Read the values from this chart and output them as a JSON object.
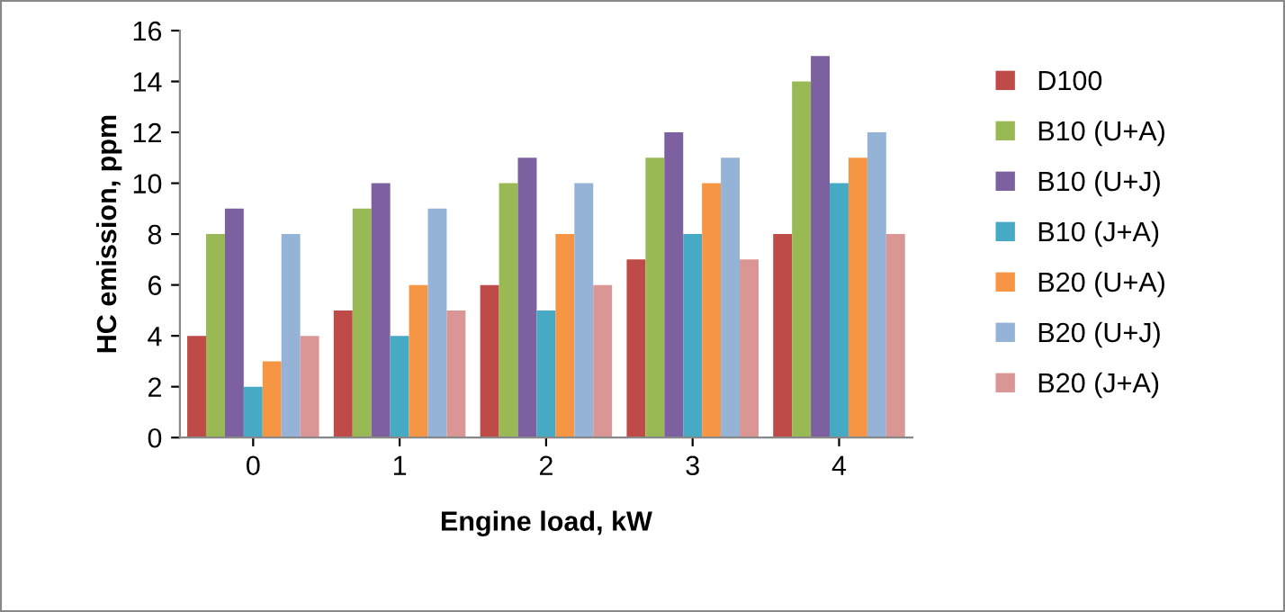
{
  "chart_data": {
    "type": "bar",
    "xlabel": "Engine load, kW",
    "ylabel": "HC emission, ppm",
    "categories": [
      "0",
      "1",
      "2",
      "3",
      "4"
    ],
    "series": [
      {
        "name": "D100",
        "color": "#be4b48",
        "values": [
          4,
          5,
          6,
          7,
          8
        ]
      },
      {
        "name": "B10 (U+A)",
        "color": "#98b954",
        "values": [
          8,
          9,
          10,
          11,
          14
        ]
      },
      {
        "name": "B10 (U+J)",
        "color": "#7d60a0",
        "values": [
          9,
          10,
          11,
          12,
          15
        ]
      },
      {
        "name": "B10 (J+A)",
        "color": "#46aac5",
        "values": [
          2,
          4,
          5,
          8,
          10
        ]
      },
      {
        "name": "B20 (U+A)",
        "color": "#f69544",
        "values": [
          3,
          6,
          8,
          10,
          11
        ]
      },
      {
        "name": "B20 (U+J)",
        "color": "#95b3d7",
        "values": [
          8,
          9,
          10,
          11,
          12
        ]
      },
      {
        "name": "B20 (J+A)",
        "color": "#d99694",
        "values": [
          4,
          5,
          6,
          7,
          8
        ]
      }
    ],
    "ylim": [
      0,
      16
    ],
    "yticks": [
      0,
      2,
      4,
      6,
      8,
      10,
      12,
      14,
      16
    ],
    "grid": false,
    "legend": "right"
  }
}
